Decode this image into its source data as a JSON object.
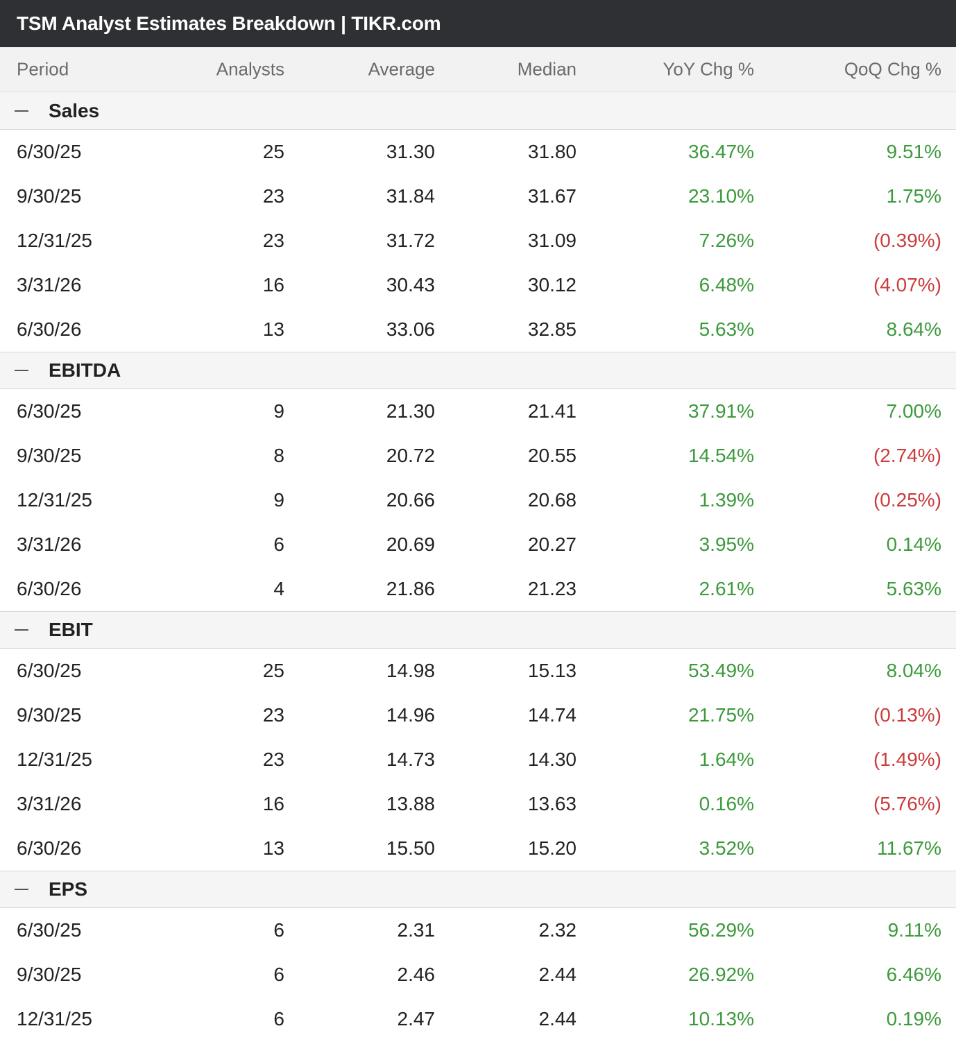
{
  "title": "TSM Analyst Estimates Breakdown | TIKR.com",
  "columns": [
    "Period",
    "Analysts",
    "Average",
    "Median",
    "YoY Chg %",
    "QoQ Chg %"
  ],
  "colors": {
    "positive": "#3c9a3c",
    "negative": "#cc3b3b",
    "title_bg": "#2f3033"
  },
  "groups": [
    {
      "name": "Sales",
      "rows": [
        {
          "period": "6/30/25",
          "analysts": "25",
          "average": "31.30",
          "median": "31.80",
          "yoy": "36.47%",
          "qoq": "9.51%"
        },
        {
          "period": "9/30/25",
          "analysts": "23",
          "average": "31.84",
          "median": "31.67",
          "yoy": "23.10%",
          "qoq": "1.75%"
        },
        {
          "period": "12/31/25",
          "analysts": "23",
          "average": "31.72",
          "median": "31.09",
          "yoy": "7.26%",
          "qoq": "(0.39%)"
        },
        {
          "period": "3/31/26",
          "analysts": "16",
          "average": "30.43",
          "median": "30.12",
          "yoy": "6.48%",
          "qoq": "(4.07%)"
        },
        {
          "period": "6/30/26",
          "analysts": "13",
          "average": "33.06",
          "median": "32.85",
          "yoy": "5.63%",
          "qoq": "8.64%"
        }
      ]
    },
    {
      "name": "EBITDA",
      "rows": [
        {
          "period": "6/30/25",
          "analysts": "9",
          "average": "21.30",
          "median": "21.41",
          "yoy": "37.91%",
          "qoq": "7.00%"
        },
        {
          "period": "9/30/25",
          "analysts": "8",
          "average": "20.72",
          "median": "20.55",
          "yoy": "14.54%",
          "qoq": "(2.74%)"
        },
        {
          "period": "12/31/25",
          "analysts": "9",
          "average": "20.66",
          "median": "20.68",
          "yoy": "1.39%",
          "qoq": "(0.25%)"
        },
        {
          "period": "3/31/26",
          "analysts": "6",
          "average": "20.69",
          "median": "20.27",
          "yoy": "3.95%",
          "qoq": "0.14%"
        },
        {
          "period": "6/30/26",
          "analysts": "4",
          "average": "21.86",
          "median": "21.23",
          "yoy": "2.61%",
          "qoq": "5.63%"
        }
      ]
    },
    {
      "name": "EBIT",
      "rows": [
        {
          "period": "6/30/25",
          "analysts": "25",
          "average": "14.98",
          "median": "15.13",
          "yoy": "53.49%",
          "qoq": "8.04%"
        },
        {
          "period": "9/30/25",
          "analysts": "23",
          "average": "14.96",
          "median": "14.74",
          "yoy": "21.75%",
          "qoq": "(0.13%)"
        },
        {
          "period": "12/31/25",
          "analysts": "23",
          "average": "14.73",
          "median": "14.30",
          "yoy": "1.64%",
          "qoq": "(1.49%)"
        },
        {
          "period": "3/31/26",
          "analysts": "16",
          "average": "13.88",
          "median": "13.63",
          "yoy": "0.16%",
          "qoq": "(5.76%)"
        },
        {
          "period": "6/30/26",
          "analysts": "13",
          "average": "15.50",
          "median": "15.20",
          "yoy": "3.52%",
          "qoq": "11.67%"
        }
      ]
    },
    {
      "name": "EPS",
      "rows": [
        {
          "period": "6/30/25",
          "analysts": "6",
          "average": "2.31",
          "median": "2.32",
          "yoy": "56.29%",
          "qoq": "9.11%"
        },
        {
          "period": "9/30/25",
          "analysts": "6",
          "average": "2.46",
          "median": "2.44",
          "yoy": "26.92%",
          "qoq": "6.46%"
        },
        {
          "period": "12/31/25",
          "analysts": "6",
          "average": "2.47",
          "median": "2.44",
          "yoy": "10.13%",
          "qoq": "0.19%"
        }
      ]
    }
  ]
}
